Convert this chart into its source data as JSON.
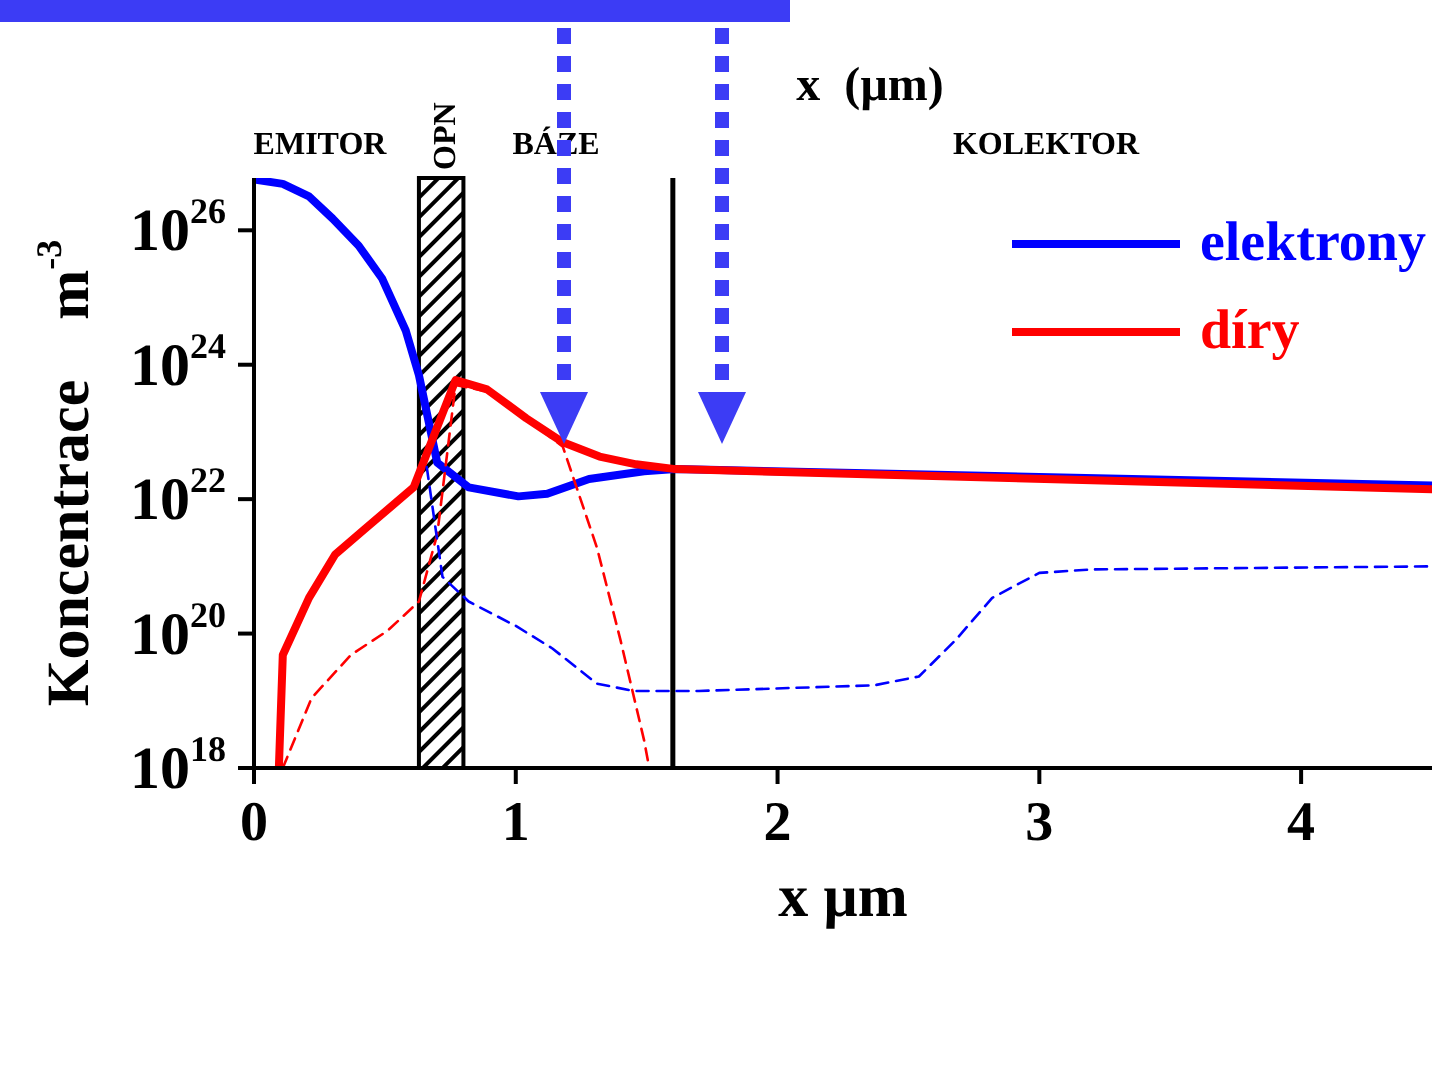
{
  "chart_data": {
    "type": "line",
    "xlabel": "x  µm",
    "ylabel": "Koncentrace    m$^{-3}$",
    "log": "y",
    "xlim": [
      0,
      4.5
    ],
    "xticks": [
      0,
      1,
      2,
      3,
      4
    ],
    "ylim": [
      1e+18,
      6e+26
    ],
    "yticks": [
      {
        "value": 1e+18,
        "label": "10$^{18}$"
      },
      {
        "value": 1e+20,
        "label": "10$^{20}$"
      },
      {
        "value": 1e+22,
        "label": "10$^{22}$"
      },
      {
        "value": 1e+24,
        "label": "10$^{24}$"
      },
      {
        "value": 1e+26,
        "label": "10$^{26}$"
      }
    ],
    "legend": "top right",
    "marker": "none",
    "series": [
      {
        "name": "elektrony",
        "color": "#0000ff",
        "line_style": "solid",
        "x": [
          0,
          0.11,
          0.21,
          0.3,
          0.4,
          0.49,
          0.58,
          0.63,
          0.7,
          0.82,
          1.01,
          1.12,
          1.28,
          1.49,
          1.61,
          4.5
        ],
        "values": [
          5.7e+26,
          4.9e+26,
          3.2e+26,
          1.5e+26,
          5.9e+25,
          1.9e+25,
          3.2e+24,
          7e+23,
          3.5e+22,
          1.5e+22,
          1.1e+22,
          1.2e+22,
          2e+22,
          2.6e+22,
          2.8e+22,
          1.6e+22
        ]
      },
      {
        "name": "díry",
        "color": "#ff0000",
        "line_style": "solid",
        "x": [
          0.095,
          0.11,
          0.21,
          0.31,
          0.42,
          0.61,
          0.77,
          0.89,
          1.04,
          1.18,
          1.32,
          1.46,
          1.61,
          4.5
        ],
        "values": [
          1e+18,
          4.8e+19,
          3.4e+20,
          1.5e+21,
          3.5e+21,
          1.5e+22,
          5.9e+23,
          4.3e+23,
          1.6e+23,
          7e+22,
          4.3e+22,
          3.3e+22,
          2.8e+22,
          1.4e+22
        ]
      },
      {
        "color": "#ff0000",
        "line_style": "dashed",
        "x": [
          0.11,
          0.22,
          0.37,
          0.51,
          0.63,
          0.7,
          0.77,
          0.89,
          1.04,
          1.18,
          1.31,
          1.4,
          1.49,
          1.51
        ],
        "values": [
          1e+18,
          1.1e+19,
          4.8e+19,
          1.1e+20,
          3e+20,
          3e+21,
          5e+23,
          4e+23,
          1.6e+23,
          6e+22,
          1.9e+21,
          8e+19,
          2.6e+18,
          1e+18
        ]
      },
      {
        "color": "#0000ff",
        "line_style": "dashed",
        "x": [
          0.66,
          0.72,
          0.82,
          1.0,
          1.14,
          1.31,
          1.45,
          1.7,
          2.37,
          2.54,
          2.68,
          2.82,
          3.0,
          3.2,
          4.5
        ],
        "values": [
          3e+22,
          7e+20,
          3e+20,
          1.3e+20,
          6e+19,
          1.8e+19,
          1.4e+19,
          1.4e+19,
          1.7e+19,
          2.3e+19,
          8e+19,
          3.4e+20,
          8e+20,
          9e+20,
          1e+21
        ]
      }
    ],
    "bands": [
      {
        "axis": "x",
        "from": 0.63,
        "to": 0.8,
        "label": "OPN",
        "color": "#000000"
      }
    ],
    "ref_lines": [
      {
        "axis": "x",
        "value": 1.6,
        "color": "#000000"
      }
    ],
    "annotations": [
      "EMITOR",
      "BÁZE",
      "KOLEKTOR",
      "x  (µm)"
    ]
  }
}
